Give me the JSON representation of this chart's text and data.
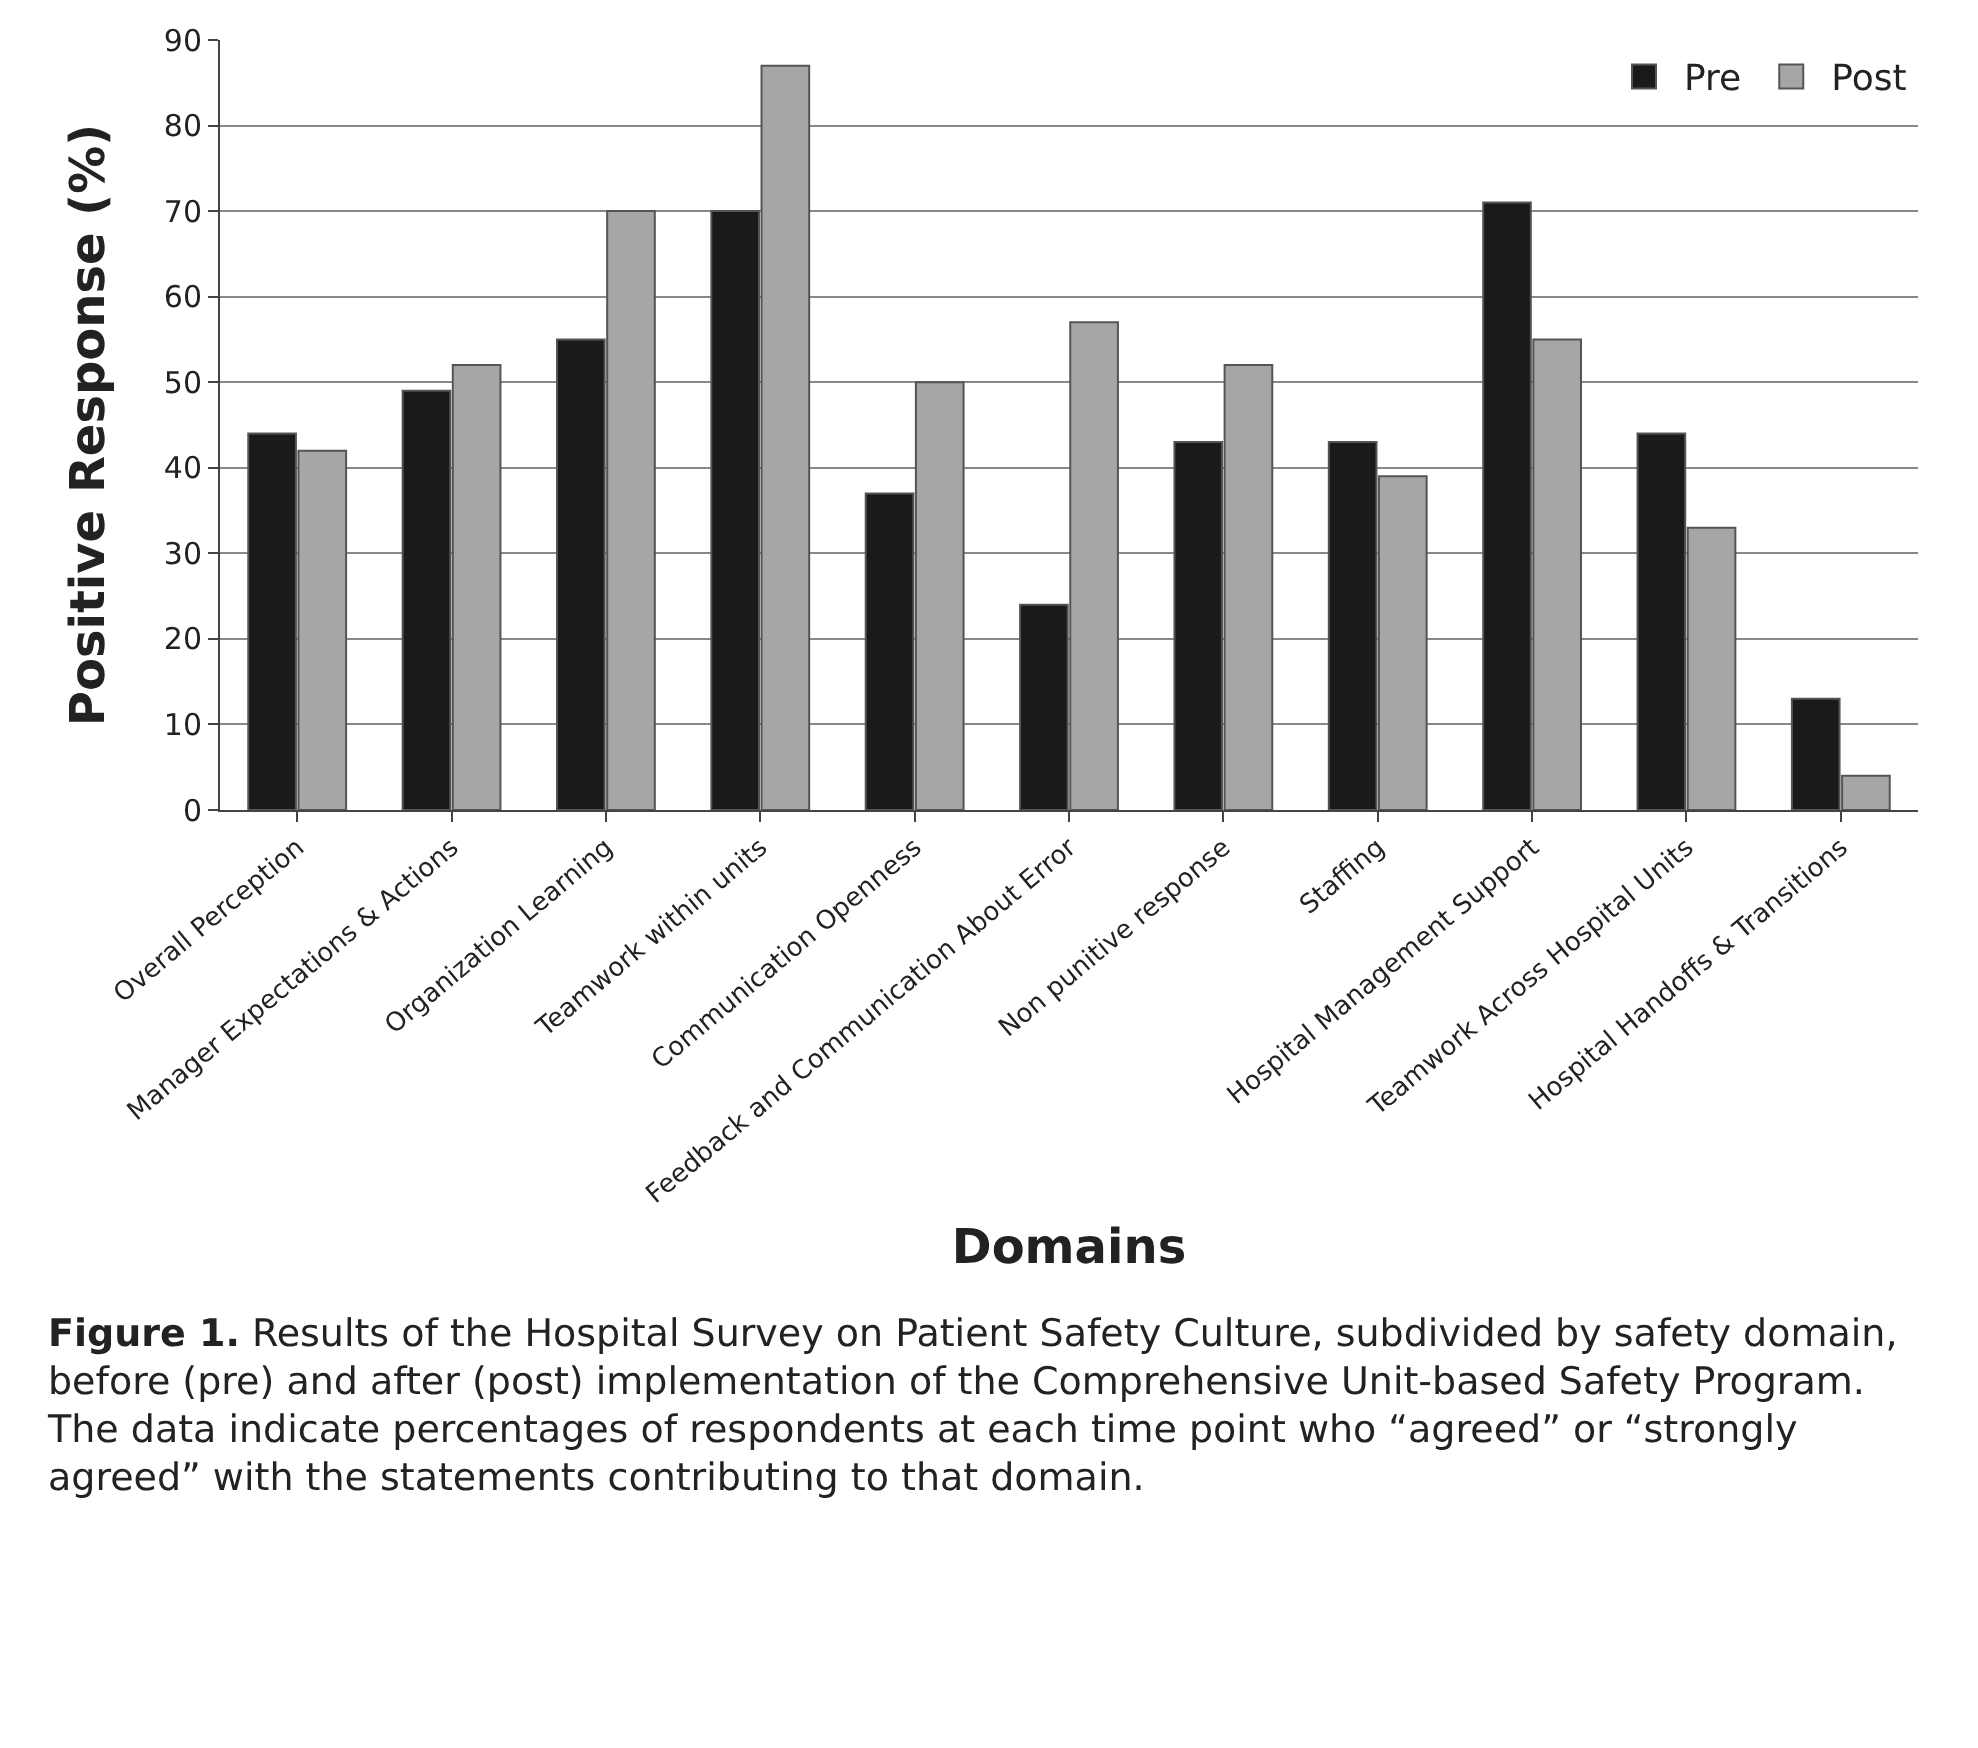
{
  "chart_data": {
    "type": "bar",
    "xlabel": "Domains",
    "ylabel": "Positive Response (%)",
    "categories": [
      "Overall Perception",
      "Manager Expectations & Actions",
      "Organization Learning",
      "Teamwork within units",
      "Communication Openness",
      "Feedback and Communication About Error",
      "Non punitive response",
      "Staffing",
      "Hospital Management Support",
      "Teamwork Across Hospital Units",
      "Hospital Handoffs & Transitions"
    ],
    "series": [
      {
        "name": "Pre",
        "color": "#1a1a1a",
        "values": [
          44,
          49,
          55,
          70,
          37,
          24,
          43,
          43,
          71,
          44,
          13
        ]
      },
      {
        "name": "Post",
        "color": "#a6a6a6",
        "values": [
          42,
          52,
          70,
          87,
          50,
          57,
          52,
          39,
          55,
          33,
          4
        ]
      }
    ],
    "ylim": [
      0,
      90
    ],
    "yticks": [
      0,
      10,
      20,
      30,
      40,
      50,
      60,
      70,
      80,
      90
    ],
    "grid": "y",
    "legend": "top right",
    "annotations": [
      "Figure 1. Results of the Hospital Survey on Patient Safety Culture, subdivided by safety domain, before (pre) and after (post) implementation of the Comprehensive Unit-based Safety Program. The data indicate percentages of respondents at each time point who “agreed” or “strongly agreed” with the statements contributing to that domain."
    ]
  }
}
